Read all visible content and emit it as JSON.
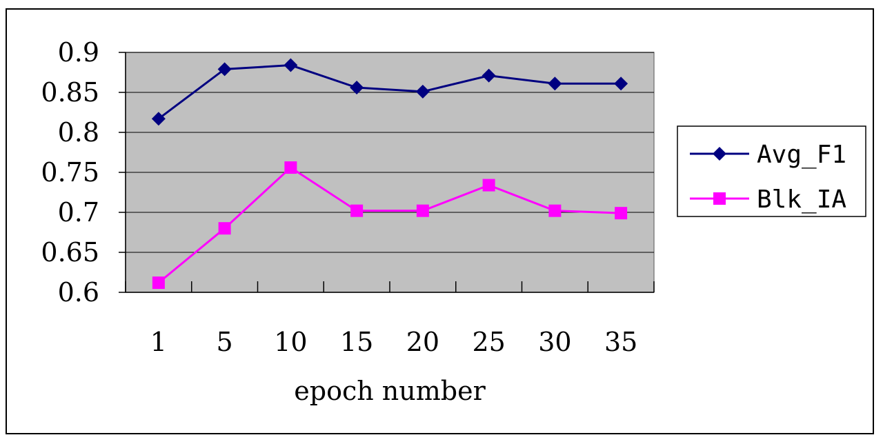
{
  "chart_data": {
    "type": "line",
    "categories": [
      "1",
      "5",
      "10",
      "15",
      "20",
      "25",
      "30",
      "35"
    ],
    "xlabel": "epoch number",
    "ylabel": "",
    "title": "",
    "ylim": [
      0.6,
      0.9
    ],
    "yticks": [
      "0.9",
      "0.85",
      "0.8",
      "0.75",
      "0.7",
      "0.65",
      "0.6"
    ],
    "ytick_values": [
      0.9,
      0.85,
      0.8,
      0.75,
      0.7,
      0.65,
      0.6
    ],
    "grid": true,
    "legend_position": "right",
    "plot_background": "#c0c0c0",
    "series": [
      {
        "name": "Avg_F1",
        "values": [
          0.817,
          0.879,
          0.884,
          0.856,
          0.851,
          0.871,
          0.861,
          0.861
        ],
        "color": "#000080",
        "marker": "diamond"
      },
      {
        "name": "Blk_IA",
        "values": [
          0.612,
          0.68,
          0.756,
          0.702,
          0.702,
          0.734,
          0.702,
          0.699
        ],
        "color": "#ff00ff",
        "marker": "square"
      }
    ]
  }
}
